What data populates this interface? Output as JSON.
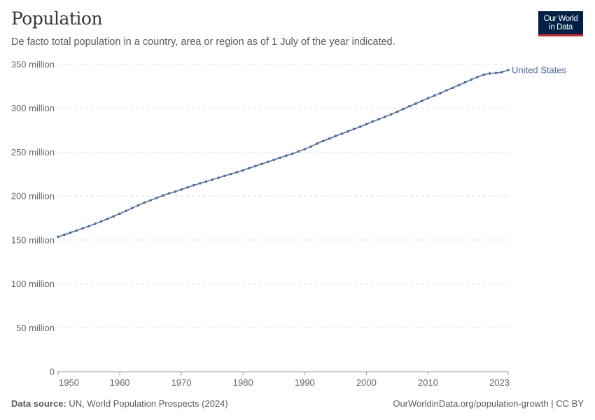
{
  "header": {
    "title": "Population",
    "subtitle": "De facto total population in a country, area or region as of 1 July of the year indicated.",
    "logo_line1": "Our World",
    "logo_line2": "in Data"
  },
  "footer": {
    "source_label": "Data source:",
    "source_text": "UN, World Population Prospects (2024)",
    "url_text": "OurWorldinData.org/population-growth | CC BY"
  },
  "colors": {
    "series": "#4c6a9c",
    "logo_bg": "#002147",
    "logo_accent": "#ce261e"
  },
  "chart_data": {
    "type": "line",
    "title": "Population",
    "xlabel": "",
    "ylabel": "",
    "xlim": [
      1950,
      2023
    ],
    "ylim": [
      0,
      350000000
    ],
    "grid": "horizontal dashed",
    "legend": "inline label at line end (right)",
    "x_ticks": [
      {
        "value": 1950,
        "label": "1950"
      },
      {
        "value": 1960,
        "label": "1960"
      },
      {
        "value": 1970,
        "label": "1970"
      },
      {
        "value": 1980,
        "label": "1980"
      },
      {
        "value": 1990,
        "label": "1990"
      },
      {
        "value": 2000,
        "label": "2000"
      },
      {
        "value": 2010,
        "label": "2010"
      },
      {
        "value": 2023,
        "label": "2023"
      }
    ],
    "y_ticks": [
      {
        "value": 0,
        "label": "0"
      },
      {
        "value": 50000000,
        "label": "50 million"
      },
      {
        "value": 100000000,
        "label": "100 million"
      },
      {
        "value": 150000000,
        "label": "150 million"
      },
      {
        "value": 200000000,
        "label": "200 million"
      },
      {
        "value": 250000000,
        "label": "250 million"
      },
      {
        "value": 300000000,
        "label": "300 million"
      },
      {
        "value": 350000000,
        "label": "350 million"
      }
    ],
    "series": [
      {
        "name": "United States",
        "x": [
          1950,
          1951,
          1952,
          1953,
          1954,
          1955,
          1956,
          1957,
          1958,
          1959,
          1960,
          1961,
          1962,
          1963,
          1964,
          1965,
          1966,
          1967,
          1968,
          1969,
          1970,
          1971,
          1972,
          1973,
          1974,
          1975,
          1976,
          1977,
          1978,
          1979,
          1980,
          1981,
          1982,
          1983,
          1984,
          1985,
          1986,
          1987,
          1988,
          1989,
          1990,
          1991,
          1992,
          1993,
          1994,
          1995,
          1996,
          1997,
          1998,
          1999,
          2000,
          2001,
          2002,
          2003,
          2004,
          2005,
          2006,
          2007,
          2008,
          2009,
          2010,
          2011,
          2012,
          2013,
          2014,
          2015,
          2016,
          2017,
          2018,
          2019,
          2020,
          2021,
          2022,
          2023
        ],
        "values": [
          153600000,
          156000000,
          158400000,
          160800000,
          163400000,
          165800000,
          168500000,
          171200000,
          174100000,
          177000000,
          179900000,
          183100000,
          186300000,
          189500000,
          192700000,
          195300000,
          198000000,
          200700000,
          203100000,
          205100000,
          207500000,
          209900000,
          212300000,
          214500000,
          216600000,
          218700000,
          220800000,
          223000000,
          225100000,
          227200000,
          229400000,
          231800000,
          234200000,
          236500000,
          238900000,
          241300000,
          243700000,
          246100000,
          248200000,
          250900000,
          253500000,
          256500000,
          259900000,
          262800000,
          265500000,
          268400000,
          271000000,
          273700000,
          276400000,
          279000000,
          281900000,
          284900000,
          287500000,
          290200000,
          293100000,
          296000000,
          299200000,
          302400000,
          305300000,
          308300000,
          311500000,
          314400000,
          317300000,
          320500000,
          323400000,
          326400000,
          329500000,
          332500000,
          335500000,
          338100000,
          339700000,
          340200000,
          341200000,
          343600000
        ]
      }
    ]
  }
}
